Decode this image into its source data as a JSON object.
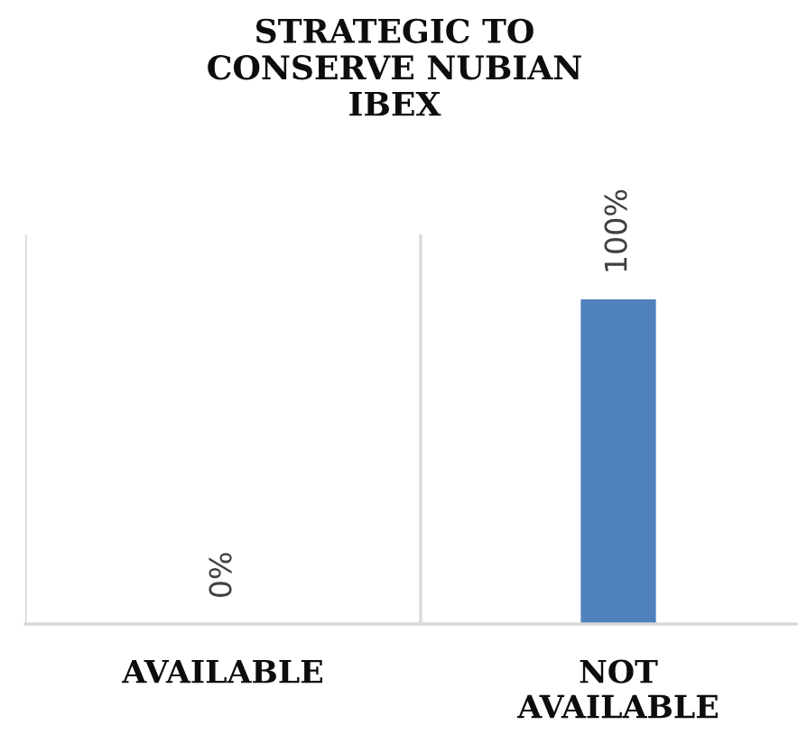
{
  "chart_data": {
    "type": "bar",
    "title": "STRATEGIC TO\nCONSERVE NUBIAN\nIBEX",
    "categories": [
      "AVAILABLE",
      "NOT\nAVAILABLE"
    ],
    "values": [
      0,
      100
    ],
    "color": "#4f81bd",
    "value_labels": [
      "0%",
      "100%"
    ],
    "ylim": [
      0,
      120
    ],
    "grid": "x",
    "tick_labels": "x"
  }
}
